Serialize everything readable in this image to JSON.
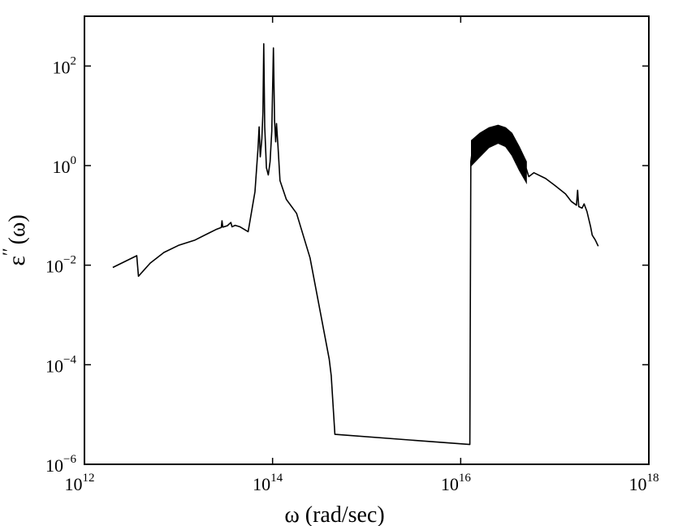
{
  "chart_data": {
    "type": "line",
    "title": "",
    "xlabel": "ω (rad/sec)",
    "ylabel": "ε′′(ω)",
    "ylabel_parts": {
      "prime": "′′",
      "symbol": "ε",
      "arg": "(ω)"
    },
    "xscale": "log",
    "yscale": "log",
    "xlim": [
      1000000000000.0,
      1e+18
    ],
    "ylim": [
      1e-06,
      1000.0
    ],
    "grid": false,
    "legend": "none",
    "line_color": "#000000",
    "x_ticks": [
      {
        "value": 1000000000000.0,
        "base": "10",
        "exp": "12"
      },
      {
        "value": 100000000000000.0,
        "base": "10",
        "exp": "14"
      },
      {
        "value": 1e+16,
        "base": "10",
        "exp": "16"
      },
      {
        "value": 1e+18,
        "base": "10",
        "exp": "18"
      }
    ],
    "y_ticks": [
      {
        "value": 1e-06,
        "base": "10",
        "exp": "−6"
      },
      {
        "value": 0.0001,
        "base": "10",
        "exp": "−4"
      },
      {
        "value": 0.01,
        "base": "10",
        "exp": "−2"
      },
      {
        "value": 1.0,
        "base": "10",
        "exp": "0"
      },
      {
        "value": 100.0,
        "base": "10",
        "exp": "2"
      }
    ],
    "series": [
      {
        "points": [
          [
            2000000000000.0,
            0.009
          ],
          [
            3600000000000.0,
            0.0155
          ],
          [
            3750000000000.0,
            0.006
          ],
          [
            5000000000000.0,
            0.011
          ],
          [
            7000000000000.0,
            0.018
          ],
          [
            10000000000000.0,
            0.025
          ],
          [
            15000000000000.0,
            0.032
          ],
          [
            20000000000000.0,
            0.042
          ],
          [
            25000000000000.0,
            0.052
          ],
          [
            28500000000000.0,
            0.057
          ],
          [
            29000000000000.0,
            0.078
          ],
          [
            29500000000000.0,
            0.058
          ],
          [
            33000000000000.0,
            0.062
          ],
          [
            36000000000000.0,
            0.072
          ],
          [
            37000000000000.0,
            0.059
          ],
          [
            40000000000000.0,
            0.063
          ],
          [
            45000000000000.0,
            0.059
          ],
          [
            55000000000000.0,
            0.047
          ],
          [
            65000000000000.0,
            0.3
          ],
          [
            70000000000000.0,
            2.2
          ],
          [
            72000000000000.0,
            6.0
          ],
          [
            74000000000000.0,
            1.5
          ],
          [
            77000000000000.0,
            3.5
          ],
          [
            79000000000000.0,
            12.0
          ],
          [
            80500000000000.0,
            280.0
          ],
          [
            82500000000000.0,
            6.0
          ],
          [
            86000000000000.0,
            0.9
          ],
          [
            90000000000000.0,
            0.65
          ],
          [
            94000000000000.0,
            1.2
          ],
          [
            98000000000000.0,
            5.0
          ],
          [
            102000000000000.0,
            230.0
          ],
          [
            105000000000000.0,
            8.0
          ],
          [
            108000000000000.0,
            3.0
          ],
          [
            110000000000000.0,
            7.0
          ],
          [
            114000000000000.0,
            2.5
          ],
          [
            120000000000000.0,
            0.5
          ],
          [
            140000000000000.0,
            0.21
          ],
          [
            180000000000000.0,
            0.11
          ],
          [
            250000000000000.0,
            0.014
          ],
          [
            400000000000000.0,
            0.00013
          ],
          [
            420000000000000.0,
            6e-05
          ],
          [
            460000000000000.0,
            4e-06
          ],
          [
            1.25e+16,
            2.5e-06
          ],
          [
            1.28e+16,
            1.2
          ],
          [
            1.35e+16,
            2.5
          ],
          [
            1.6e+16,
            3.5
          ],
          [
            2e+16,
            4.5
          ],
          [
            2.5e+16,
            5.0
          ],
          [
            3.2e+16,
            3.5
          ],
          [
            4.2e+16,
            1.6
          ],
          [
            5e+16,
            0.85
          ],
          [
            5.3e+16,
            0.6
          ],
          [
            6e+16,
            0.72
          ],
          [
            8e+16,
            0.55
          ],
          [
            1e+17,
            0.4
          ],
          [
            1.3e+17,
            0.27
          ],
          [
            1.5e+17,
            0.19
          ],
          [
            1.7e+17,
            0.16
          ],
          [
            1.75e+17,
            0.32
          ],
          [
            1.8e+17,
            0.15
          ],
          [
            1.95e+17,
            0.14
          ],
          [
            2.05e+17,
            0.17
          ],
          [
            2.2e+17,
            0.12
          ],
          [
            2.4e+17,
            0.06
          ],
          [
            2.5e+17,
            0.04
          ],
          [
            2.7e+17,
            0.032
          ],
          [
            2.9e+17,
            0.024
          ]
        ],
        "band": {
          "upper": [
            [
              1.3e+16,
              3.2
            ],
            [
              1.6e+16,
              4.5
            ],
            [
              2e+16,
              5.8
            ],
            [
              2.5e+16,
              6.5
            ],
            [
              3e+16,
              5.8
            ],
            [
              3.5e+16,
              4.5
            ],
            [
              4.2e+16,
              2.4
            ],
            [
              5e+16,
              1.2
            ]
          ],
          "lower": [
            [
              1.3e+16,
              1.0
            ],
            [
              1.6e+16,
              1.5
            ],
            [
              2e+16,
              2.3
            ],
            [
              2.5e+16,
              2.8
            ],
            [
              3e+16,
              2.4
            ],
            [
              3.5e+16,
              1.6
            ],
            [
              4.2e+16,
              0.8
            ],
            [
              5e+16,
              0.45
            ]
          ]
        }
      }
    ]
  }
}
